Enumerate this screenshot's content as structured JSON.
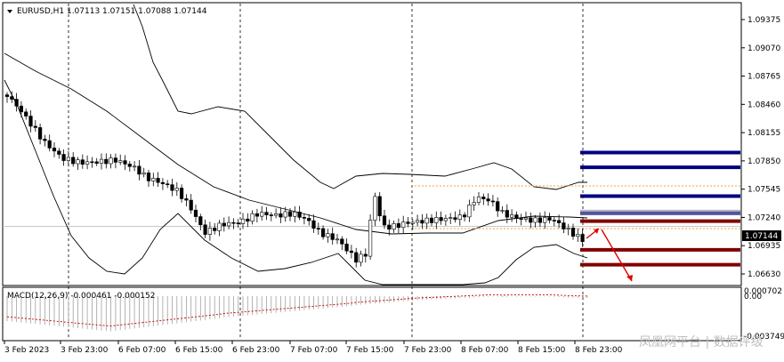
{
  "chart_data": {
    "type": "candlestick",
    "symbol_header": "EURUSD,H1  1.07113 1.07151 1.07088 1.07144",
    "macd_header": "MACD(12,26,9) -0.000461 -0.000152",
    "price_axis": {
      "min": 1.0663,
      "max": 1.09375,
      "ticks": [
        "1.09375",
        "1.09070",
        "1.08765",
        "1.08460",
        "1.08155",
        "1.07850",
        "1.07545",
        "1.07240",
        "1.06935",
        "1.06630"
      ],
      "current_price": "1.07144"
    },
    "macd_axis": {
      "ticks": [
        "0.000702",
        "0.00",
        "-0.003749"
      ]
    },
    "time_axis": {
      "ticks": [
        "3 Feb 2023",
        "3 Feb 23:00",
        "6 Feb 07:00",
        "6 Feb 15:00",
        "6 Feb 23:00",
        "7 Feb 07:00",
        "7 Feb 15:00",
        "7 Feb 23:00",
        "8 Feb 07:00",
        "8 Feb 15:00",
        "8 Feb 23:00"
      ]
    },
    "day_separators": [
      "3 Feb 23:00",
      "6 Feb 23:00",
      "7 Feb 23:00",
      "8 Feb 23:00"
    ],
    "levels": [
      {
        "price": 1.0794,
        "color": "#000080"
      },
      {
        "price": 1.0778,
        "color": "#000080"
      },
      {
        "price": 1.0747,
        "color": "#000080"
      },
      {
        "price": 1.07285,
        "color": "#000080"
      },
      {
        "price": 1.072,
        "color": "#800000"
      },
      {
        "price": 1.0689,
        "color": "#800000"
      },
      {
        "price": 1.0673,
        "color": "#800000"
      }
    ],
    "range_box": {
      "top": 1.0758,
      "bottom": 1.0712,
      "color": "#f0a040"
    },
    "watermark": "凤凰网平台 | 数据评级"
  }
}
